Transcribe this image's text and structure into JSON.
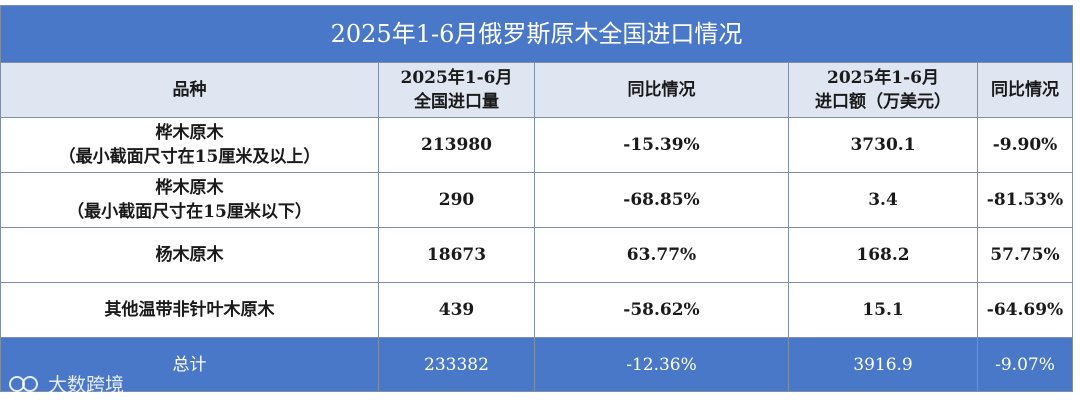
{
  "title": "2025年1-6月俄罗斯原木全国进口情况",
  "table": {
    "headers": [
      "品种",
      "2025年1-6月\n全国进口量",
      "同比情况",
      "2025年1-6月\n进口额（万美元）",
      "同比情况"
    ],
    "rows": [
      [
        "桦木原木\n（最小截面尺寸在15厘米及以上）",
        "213980",
        "-15.39%",
        "3730.1",
        "-9.90%"
      ],
      [
        "桦木原木\n（最小截面尺寸在15厘米以下）",
        "290",
        "-68.85%",
        "3.4",
        "-81.53%"
      ],
      [
        "杨木原木",
        "18673",
        "63.77%",
        "168.2",
        "57.75%"
      ],
      [
        "其他温带非针叶木原木",
        "439",
        "-58.62%",
        "15.1",
        "-64.69%"
      ]
    ],
    "total": [
      "总计",
      "233382",
      "-12.36%",
      "3916.9",
      "-9.07%"
    ]
  },
  "watermark": "大数跨境"
}
